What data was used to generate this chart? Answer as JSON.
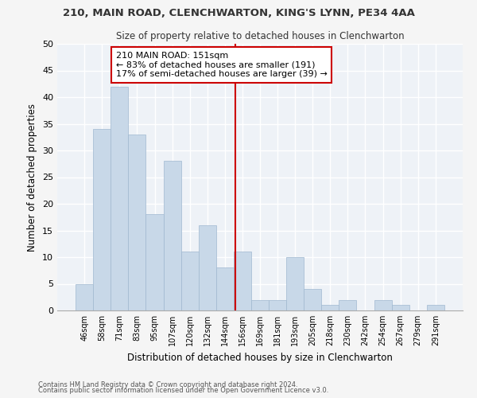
{
  "title1": "210, MAIN ROAD, CLENCHWARTON, KING'S LYNN, PE34 4AA",
  "title2": "Size of property relative to detached houses in Clenchwarton",
  "xlabel": "Distribution of detached houses by size in Clenchwarton",
  "ylabel": "Number of detached properties",
  "categories": [
    "46sqm",
    "58sqm",
    "71sqm",
    "83sqm",
    "95sqm",
    "107sqm",
    "120sqm",
    "132sqm",
    "144sqm",
    "156sqm",
    "169sqm",
    "181sqm",
    "193sqm",
    "205sqm",
    "218sqm",
    "230sqm",
    "242sqm",
    "254sqm",
    "267sqm",
    "279sqm",
    "291sqm"
  ],
  "values": [
    5,
    34,
    42,
    33,
    18,
    28,
    11,
    16,
    8,
    11,
    2,
    2,
    10,
    4,
    1,
    2,
    0,
    2,
    1,
    0,
    1
  ],
  "bar_color": "#c8d8e8",
  "bar_edge_color": "#a0b8d0",
  "vline_x": 8.58,
  "vline_color": "#cc0000",
  "annotation_text": "210 MAIN ROAD: 151sqm\n← 83% of detached houses are smaller (191)\n17% of semi-detached houses are larger (39) →",
  "annotation_box_color": "#cc0000",
  "annotation_text_color": "#000000",
  "ylim": [
    0,
    50
  ],
  "yticks": [
    0,
    5,
    10,
    15,
    20,
    25,
    30,
    35,
    40,
    45,
    50
  ],
  "background_color": "#eef2f7",
  "grid_color": "#ffffff",
  "fig_facecolor": "#f5f5f5",
  "footer1": "Contains HM Land Registry data © Crown copyright and database right 2024.",
  "footer2": "Contains public sector information licensed under the Open Government Licence v3.0."
}
